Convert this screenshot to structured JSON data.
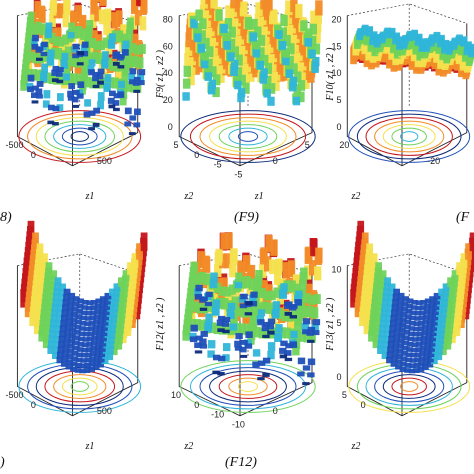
{
  "panels": [
    {
      "id": "F8",
      "caption": "8)",
      "zlabel": "",
      "z_ticks": [],
      "x_ticks": [
        "500"
      ],
      "y_ticks": [
        "-500",
        "0"
      ],
      "x_axis_label": "z1",
      "y_axis_label": ""
    },
    {
      "id": "F9",
      "caption": "(F9)",
      "zlabel": "F9( z1 , z2 )",
      "z_ticks": [
        "80",
        "60",
        "40",
        "20",
        "0"
      ],
      "x_ticks": [
        "0",
        "5"
      ],
      "y_ticks": [
        "5",
        "0",
        "-5",
        "-5"
      ],
      "x_axis_label": "z1",
      "y_axis_label": "z2"
    },
    {
      "id": "F10",
      "caption": "(F",
      "zlabel": "F10( z1 , z2 )",
      "z_ticks": [
        "20",
        "15",
        "10",
        "5",
        "0"
      ],
      "x_ticks": [
        "-20"
      ],
      "y_ticks": [
        "20"
      ],
      "x_axis_label": "",
      "y_axis_label": "z2"
    },
    {
      "id": "F11",
      "caption": ")",
      "zlabel": "",
      "z_ticks": [],
      "x_ticks": [
        "500"
      ],
      "y_ticks": [
        "-500",
        "0"
      ],
      "x_axis_label": "z1",
      "y_axis_label": ""
    },
    {
      "id": "F12",
      "caption": "(F12)",
      "zlabel": "F12( z1 , z2 )",
      "z_ticks": [],
      "x_ticks": [
        "0"
      ],
      "y_ticks": [
        "10",
        "0",
        "-10",
        "-10"
      ],
      "x_axis_label": "",
      "y_axis_label": "z2"
    },
    {
      "id": "F13",
      "caption": "",
      "zlabel": "F13( z1 , z2 )",
      "z_ticks": [
        "10",
        "5",
        "0"
      ],
      "x_ticks": [],
      "y_ticks": [
        "5",
        "0"
      ],
      "x_axis_label": "",
      "y_axis_label": "z2"
    }
  ],
  "colors": {
    "red": "#c4161c",
    "orange": "#f28c28",
    "yellow": "#f4e04d",
    "green": "#6fd35b",
    "cyan": "#2fb5d9",
    "blue": "#1f4fb8",
    "darkblue": "#0b2a7a"
  }
}
